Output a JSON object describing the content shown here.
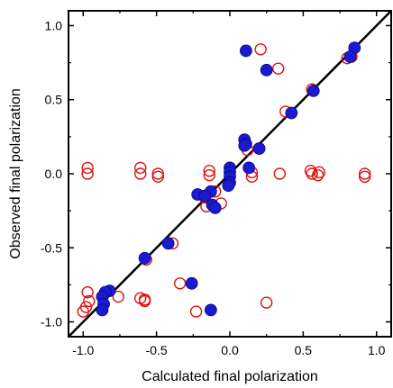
{
  "chart_data": {
    "type": "scatter",
    "title": "",
    "xlabel": "Calculated final polarization",
    "ylabel": "Observed final polarization",
    "xlim": [
      -1.1,
      1.1
    ],
    "ylim": [
      -1.1,
      1.1
    ],
    "xticks": [
      {
        "value": -1.0,
        "label": "-1.0"
      },
      {
        "value": -0.5,
        "label": "-0.5"
      },
      {
        "value": 0.0,
        "label": "0.0"
      },
      {
        "value": 0.5,
        "label": "0.5"
      },
      {
        "value": 1.0,
        "label": "1.0"
      }
    ],
    "yticks": [
      {
        "value": -1.0,
        "label": "-1.0"
      },
      {
        "value": -0.5,
        "label": "-0.5"
      },
      {
        "value": 0.0,
        "label": "0.0"
      },
      {
        "value": 0.5,
        "label": "0.5"
      },
      {
        "value": 1.0,
        "label": "1.0"
      }
    ],
    "grid": false,
    "legend": false,
    "reference_line": {
      "x": [
        -1.1,
        1.1
      ],
      "y": [
        -1.1,
        1.1
      ],
      "color": "#000000"
    },
    "series": [
      {
        "marker": "open-circle",
        "color": "#e01010",
        "points": [
          {
            "x": 0.21,
            "y": 0.84
          },
          {
            "x": 0.33,
            "y": 0.71
          },
          {
            "x": 0.8,
            "y": 0.78
          },
          {
            "x": 0.83,
            "y": 0.79
          },
          {
            "x": 0.56,
            "y": 0.57
          },
          {
            "x": 0.38,
            "y": 0.42
          },
          {
            "x": 0.2,
            "y": 0.17
          },
          {
            "x": 0.12,
            "y": 0.16
          },
          {
            "x": -0.97,
            "y": 0.04
          },
          {
            "x": -0.97,
            "y": 0.0
          },
          {
            "x": -0.61,
            "y": 0.04
          },
          {
            "x": -0.61,
            "y": 0.0
          },
          {
            "x": -0.49,
            "y": 0.0
          },
          {
            "x": -0.49,
            "y": -0.02
          },
          {
            "x": -0.14,
            "y": 0.02
          },
          {
            "x": -0.14,
            "y": -0.01
          },
          {
            "x": 0.15,
            "y": 0.01
          },
          {
            "x": 0.15,
            "y": -0.02
          },
          {
            "x": 0.34,
            "y": 0.0
          },
          {
            "x": 0.55,
            "y": 0.02
          },
          {
            "x": 0.56,
            "y": 0.0
          },
          {
            "x": 0.61,
            "y": 0.01
          },
          {
            "x": 0.6,
            "y": -0.01
          },
          {
            "x": 0.92,
            "y": 0.0
          },
          {
            "x": 0.92,
            "y": -0.02
          },
          {
            "x": -0.1,
            "y": -0.12
          },
          {
            "x": -0.17,
            "y": -0.16
          },
          {
            "x": -0.16,
            "y": -0.22
          },
          {
            "x": -0.39,
            "y": -0.47
          },
          {
            "x": -0.57,
            "y": -0.58
          },
          {
            "x": -0.34,
            "y": -0.74
          },
          {
            "x": -0.06,
            "y": -0.2
          },
          {
            "x": -0.97,
            "y": -0.8
          },
          {
            "x": -0.96,
            "y": -0.86
          },
          {
            "x": -0.98,
            "y": -0.9
          },
          {
            "x": -1.0,
            "y": -0.93
          },
          {
            "x": -0.76,
            "y": -0.83
          },
          {
            "x": -0.61,
            "y": -0.84
          },
          {
            "x": -0.58,
            "y": -0.86
          },
          {
            "x": -0.58,
            "y": -0.85
          },
          {
            "x": -0.23,
            "y": -0.93
          },
          {
            "x": 0.25,
            "y": -0.87
          }
        ]
      },
      {
        "marker": "filled-circle",
        "color": "#1a1ad0",
        "points": [
          {
            "x": 0.11,
            "y": 0.83
          },
          {
            "x": 0.25,
            "y": 0.7
          },
          {
            "x": 0.85,
            "y": 0.85
          },
          {
            "x": 0.82,
            "y": 0.79
          },
          {
            "x": 0.57,
            "y": 0.56
          },
          {
            "x": 0.42,
            "y": 0.41
          },
          {
            "x": 0.1,
            "y": 0.23
          },
          {
            "x": 0.11,
            "y": 0.2
          },
          {
            "x": 0.1,
            "y": 0.19
          },
          {
            "x": 0.2,
            "y": 0.17
          },
          {
            "x": 0.0,
            "y": 0.04
          },
          {
            "x": 0.0,
            "y": 0.01
          },
          {
            "x": 0.0,
            "y": -0.02
          },
          {
            "x": 0.0,
            "y": -0.06
          },
          {
            "x": -0.01,
            "y": -0.08
          },
          {
            "x": 0.13,
            "y": 0.04
          },
          {
            "x": -0.13,
            "y": -0.12
          },
          {
            "x": -0.22,
            "y": -0.14
          },
          {
            "x": -0.17,
            "y": -0.15
          },
          {
            "x": -0.12,
            "y": -0.21
          },
          {
            "x": -0.1,
            "y": -0.23
          },
          {
            "x": -0.42,
            "y": -0.47
          },
          {
            "x": -0.58,
            "y": -0.57
          },
          {
            "x": -0.26,
            "y": -0.74
          },
          {
            "x": -0.13,
            "y": -0.92
          },
          {
            "x": -0.82,
            "y": -0.79
          },
          {
            "x": -0.85,
            "y": -0.8
          },
          {
            "x": -0.87,
            "y": -0.83
          },
          {
            "x": -0.86,
            "y": -0.88
          },
          {
            "x": -0.87,
            "y": -0.92
          }
        ]
      }
    ]
  }
}
